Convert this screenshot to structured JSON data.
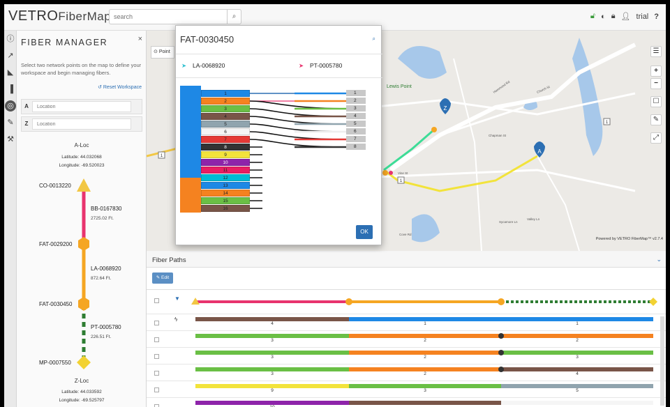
{
  "app": {
    "logo_vetro": "VETRO",
    "logo_product": "FiberMap",
    "logo_tm": "™",
    "search_placeholder": "search",
    "search_icon": "search-icon",
    "user_label": "trial",
    "help_icon": "?"
  },
  "rail": [
    "info-icon",
    "chart-line-icon",
    "chart-area-icon",
    "bar-chart-icon",
    "fiber-manager-icon",
    "edit-icon",
    "tools-icon"
  ],
  "panel": {
    "title": "FIBER MANAGER",
    "close": "×",
    "description": "Select two network points on the map to define your workspace and begin managing fibers.",
    "reset_label": "Reset Workspace",
    "a_label": "A",
    "z_label": "Z",
    "location_placeholder": "Location",
    "aloc_title": "A-Loc",
    "aloc_lat": "Latitude: 44.032068",
    "aloc_lon": "Longitude: -69.520023",
    "zloc_title": "Z-Loc",
    "zloc_lat": "Latitude: 44.033592",
    "zloc_lon": "Longitude: -69.525797",
    "nodes": {
      "n1": "CO-0013220",
      "n2": "FAT-0029200",
      "n3": "FAT-0030450",
      "n4": "MP-0007550"
    },
    "segments": {
      "s1_name": "BB-0167830",
      "s1_ft": "2725.02 Ft.",
      "s2_name": "LA-0068920",
      "s2_ft": "872.64 Ft.",
      "s3_name": "PT-0005780",
      "s3_ft": "226.51 Ft."
    }
  },
  "map": {
    "points_label": "Point",
    "place_lewis": "Lewis Point",
    "powered": "Powered by VETRO FiberMap™ v2.7.4",
    "controls": [
      "layers-icon",
      "+",
      "−",
      "comment-icon",
      "pencil-icon",
      "measure-icon"
    ],
    "street_labels": [
      "Church St",
      "Chapman St",
      "Vine St",
      "Valley Ln",
      "Sycamore Ln",
      "Hammond Rd",
      "Cove Rd"
    ],
    "route_shields": [
      "1",
      "1",
      "1"
    ],
    "marker_a": "A",
    "marker_z": "Z"
  },
  "modal": {
    "title": "FAT-0030450",
    "cable_left": "LA-0068920",
    "cable_right": "PT-0005780",
    "ok_label": "OK",
    "left_fibers": [
      "1",
      "2",
      "3",
      "4",
      "5",
      "6",
      "7",
      "8",
      "9",
      "10",
      "11",
      "12",
      "13",
      "14",
      "15",
      "16"
    ],
    "right_fibers": [
      "1",
      "2",
      "3",
      "4",
      "5",
      "6",
      "7",
      "8"
    ]
  },
  "paths": {
    "title": "Fiber Paths",
    "edit_label": "Edit",
    "rows": [
      {
        "a": "4",
        "b": "1",
        "c": "1"
      },
      {
        "a": "3",
        "b": "2",
        "c": "2"
      },
      {
        "a": "3",
        "b": "2",
        "c": "3"
      },
      {
        "a": "3",
        "b": "2",
        "c": "4"
      },
      {
        "a": "9",
        "b": "3",
        "c": "5"
      },
      {
        "a": "10",
        "b": "",
        "c": ""
      }
    ]
  },
  "colors": {
    "accent": "#2c6fb3",
    "pink": "#e8336e",
    "orange": "#f5a623",
    "green": "#2e7d32",
    "yellow": "#f2e33b"
  }
}
